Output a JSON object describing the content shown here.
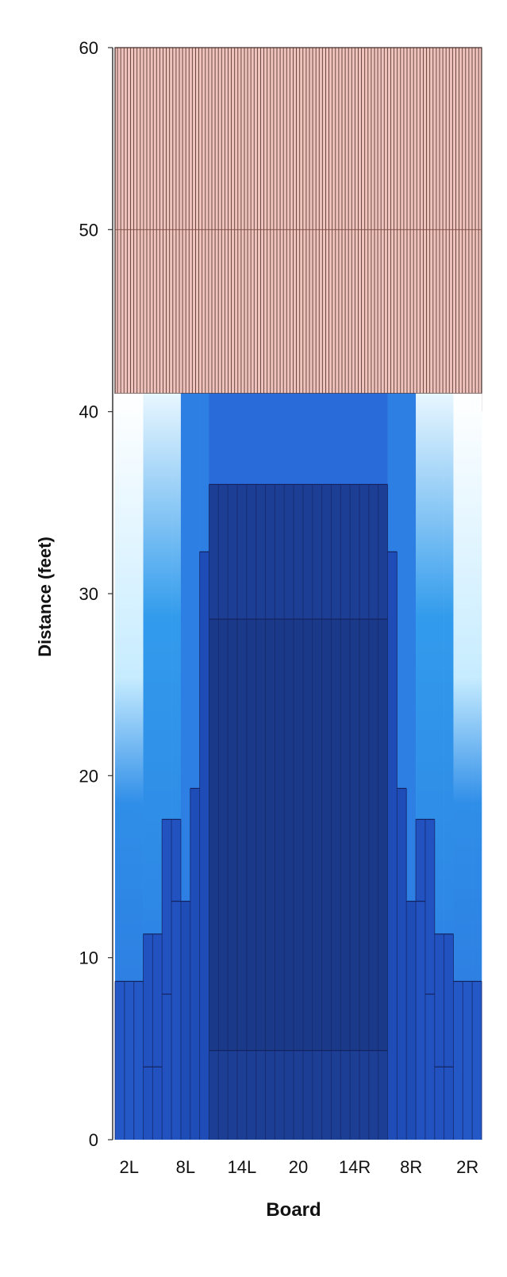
{
  "chart_data": {
    "type": "heatmap",
    "xlabel": "Board",
    "ylabel": "Distance (feet)",
    "x_tick_labels": [
      "2L",
      "8L",
      "14L",
      "20",
      "14R",
      "8R",
      "2R"
    ],
    "y_tick_labels": [
      "0",
      "10",
      "20",
      "30",
      "40",
      "50",
      "60"
    ],
    "ylim": [
      0,
      60
    ],
    "boards": [
      "1L",
      "2L",
      "3L",
      "4L",
      "5L",
      "6L",
      "7L",
      "8L",
      "9L",
      "10L",
      "11L",
      "12L",
      "13L",
      "14L",
      "15L",
      "16L",
      "17L",
      "18L",
      "19L",
      "20",
      "19R",
      "18R",
      "17R",
      "16R",
      "15R",
      "14R",
      "13R",
      "12R",
      "11R",
      "10R",
      "9R",
      "8R",
      "7R",
      "6R",
      "5R",
      "4R",
      "3R",
      "2R",
      "1R"
    ],
    "lane_length_ft": 60,
    "dry_backend": {
      "color": "#e8b8b0",
      "start_distance_ft_by_board": [
        40,
        40,
        40,
        41,
        41,
        41,
        41,
        41,
        41,
        41,
        41,
        41,
        41,
        41,
        41,
        41,
        41,
        41,
        41,
        41,
        41,
        41,
        41,
        41,
        41,
        41,
        41,
        41,
        41,
        41,
        41,
        41,
        41,
        41,
        41,
        41,
        40,
        40,
        40
      ]
    },
    "oil_pattern": {
      "colors": {
        "light": "#ffffff",
        "medium": "#2a8ae8",
        "heavy": "#1f56c4",
        "heaviest": "#1a3e8c"
      },
      "oil_end_distance_ft_by_board": [
        8.7,
        8.7,
        8.7,
        11.3,
        11.3,
        17.6,
        17.6,
        13.1,
        19.3,
        32.3,
        36,
        36,
        36,
        36,
        36,
        36,
        36,
        36,
        36,
        36,
        36,
        36,
        36,
        36,
        36,
        36,
        36,
        36,
        36,
        32.3,
        19.3,
        13.1,
        17.6,
        17.6,
        11.3,
        11.3,
        8.7,
        8.7,
        8.7
      ],
      "segment_breaks_by_board": [
        [
          8.7
        ],
        [
          8.7
        ],
        [
          8.7
        ],
        [
          4,
          11.3
        ],
        [
          4,
          11.3
        ],
        [
          8,
          17.6
        ],
        [
          13.1,
          17.6
        ],
        [
          13.1
        ],
        [
          19.3
        ],
        [
          32.3
        ],
        [
          4.9,
          28.6,
          36
        ],
        [
          4.9,
          28.6,
          36
        ],
        [
          4.9,
          28.6,
          36
        ],
        [
          4.9,
          28.6,
          36
        ],
        [
          4.9,
          28.6,
          36
        ],
        [
          4.9,
          28.6,
          36
        ],
        [
          4.9,
          28.6,
          36
        ],
        [
          4.9,
          28.6,
          36
        ],
        [
          4.9,
          28.6,
          36
        ],
        [
          4.9,
          28.6,
          36
        ],
        [
          4.9,
          28.6,
          36
        ],
        [
          4.9,
          28.6,
          36
        ],
        [
          4.9,
          28.6,
          36
        ],
        [
          4.9,
          28.6,
          36
        ],
        [
          4.9,
          28.6,
          36
        ],
        [
          4.9,
          28.6,
          36
        ],
        [
          4.9,
          28.6,
          36
        ],
        [
          4.9,
          28.6,
          36
        ],
        [
          4.9,
          28.6,
          36
        ],
        [
          32.3
        ],
        [
          19.3
        ],
        [
          13.1
        ],
        [
          13.1,
          17.6
        ],
        [
          8,
          17.6
        ],
        [
          4,
          11.3
        ],
        [
          4,
          11.3
        ],
        [
          8.7
        ],
        [
          8.7
        ],
        [
          8.7
        ]
      ]
    }
  }
}
